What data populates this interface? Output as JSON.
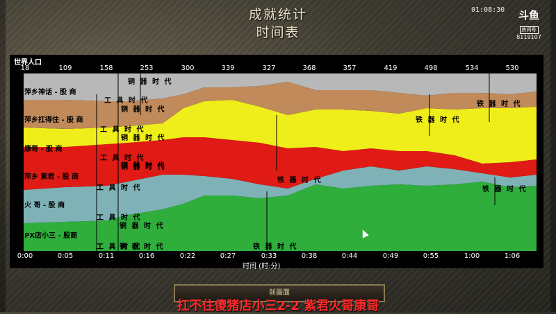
{
  "window": {
    "title_line1": "成就统计",
    "title_line2": "时间表"
  },
  "stream": {
    "clock": "01:08:30",
    "brand": "斗鱼",
    "room_label": "房间号",
    "room_number": "8119107"
  },
  "chart_data": {
    "type": "area",
    "title": "世界人口",
    "xlabel": "时间 (时:分)",
    "top_axis_values": [
      "18",
      "109",
      "158",
      "253",
      "300",
      "339",
      "327",
      "368",
      "357",
      "419",
      "498",
      "534",
      "530"
    ],
    "x_ticks": [
      "0:00",
      "0:05",
      "0:11",
      "0:16",
      "0:22",
      "0:27",
      "0:33",
      "0:38",
      "0:44",
      "0:49",
      "0:55",
      "1:00",
      "1:06"
    ],
    "series": [
      {
        "name": "PX店小三 - 股商",
        "color": "#2fae3c"
      },
      {
        "name": "火 哥 - 股 商",
        "color": "#7fb2b6"
      },
      {
        "name": "萍乡 紫君 - 股 商",
        "color": "#e01a14"
      },
      {
        "name": "康哥 - 股 商",
        "color": "#f0ee1a"
      },
      {
        "name": "萍乡扛得住 - 股 商",
        "color": "#c08a5a"
      },
      {
        "name": "萍乡神话 - 股 商",
        "color": "#b8b8b8"
      }
    ],
    "age_labels": [
      "铜 器 时 代",
      "工 具 时 代",
      "铜 器 时 代",
      "铁 器 时 代",
      "工 具 时 代",
      "铜 器 时 代",
      "铁 器 时 代",
      "工 具 时 代",
      "铜 器 时 代",
      "工 具 时 代",
      "铜 器 时 代",
      "铁 器 时 代",
      "铁 器 时 代",
      "工 具 时 代",
      "铜 器 时 代",
      "工 具 时 代",
      "铜 器 时 代",
      "铁 器 时 代"
    ]
  },
  "controls": {
    "next_button": "前画面"
  },
  "overlay": {
    "subtitle": "扛不住傻猪店小三2-2 紫君火哥康哥"
  }
}
